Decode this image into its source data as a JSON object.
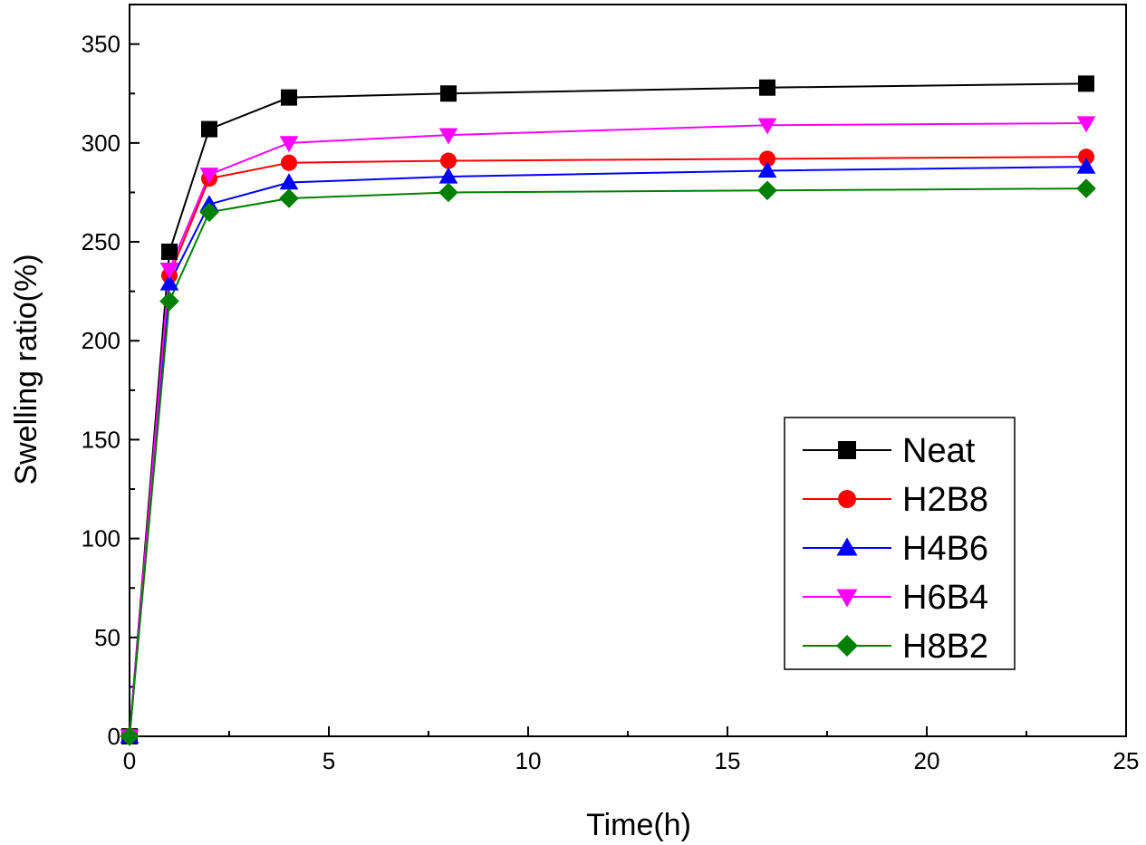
{
  "chart_data": {
    "type": "line",
    "title": "",
    "xlabel": "Time(h)",
    "ylabel": "Swelling ratio(%)",
    "xlim": [
      0,
      25
    ],
    "ylim": [
      0,
      370
    ],
    "x_ticks": [
      0,
      5,
      10,
      15,
      20,
      25
    ],
    "y_ticks": [
      0,
      50,
      100,
      150,
      200,
      250,
      300,
      350
    ],
    "x_tick_labels": [
      "0",
      "5",
      "10",
      "15",
      "20",
      "25"
    ],
    "y_tick_labels": [
      "0",
      "50",
      "100",
      "150",
      "200",
      "250",
      "300",
      "350"
    ],
    "grid": false,
    "legend_position": "center-right",
    "x": [
      0,
      1,
      2,
      4,
      8,
      16,
      24
    ],
    "series": [
      {
        "name": "Neat",
        "color": "#000000",
        "marker": "square",
        "values": [
          0,
          245,
          307,
          323,
          325,
          328,
          330
        ]
      },
      {
        "name": "H2B8",
        "color": "#ff0000",
        "marker": "circle",
        "values": [
          0,
          233,
          282,
          290,
          291,
          292,
          293
        ]
      },
      {
        "name": "H4B6",
        "color": "#0000ff",
        "marker": "triangle-up",
        "values": [
          0,
          229,
          269,
          280,
          283,
          286,
          288
        ]
      },
      {
        "name": "H6B4",
        "color": "#ff00ff",
        "marker": "triangle-down",
        "values": [
          0,
          236,
          284,
          300,
          304,
          309,
          310
        ]
      },
      {
        "name": "H8B2",
        "color": "#008000",
        "marker": "diamond",
        "values": [
          0,
          220,
          265,
          272,
          275,
          276,
          277
        ]
      }
    ]
  }
}
